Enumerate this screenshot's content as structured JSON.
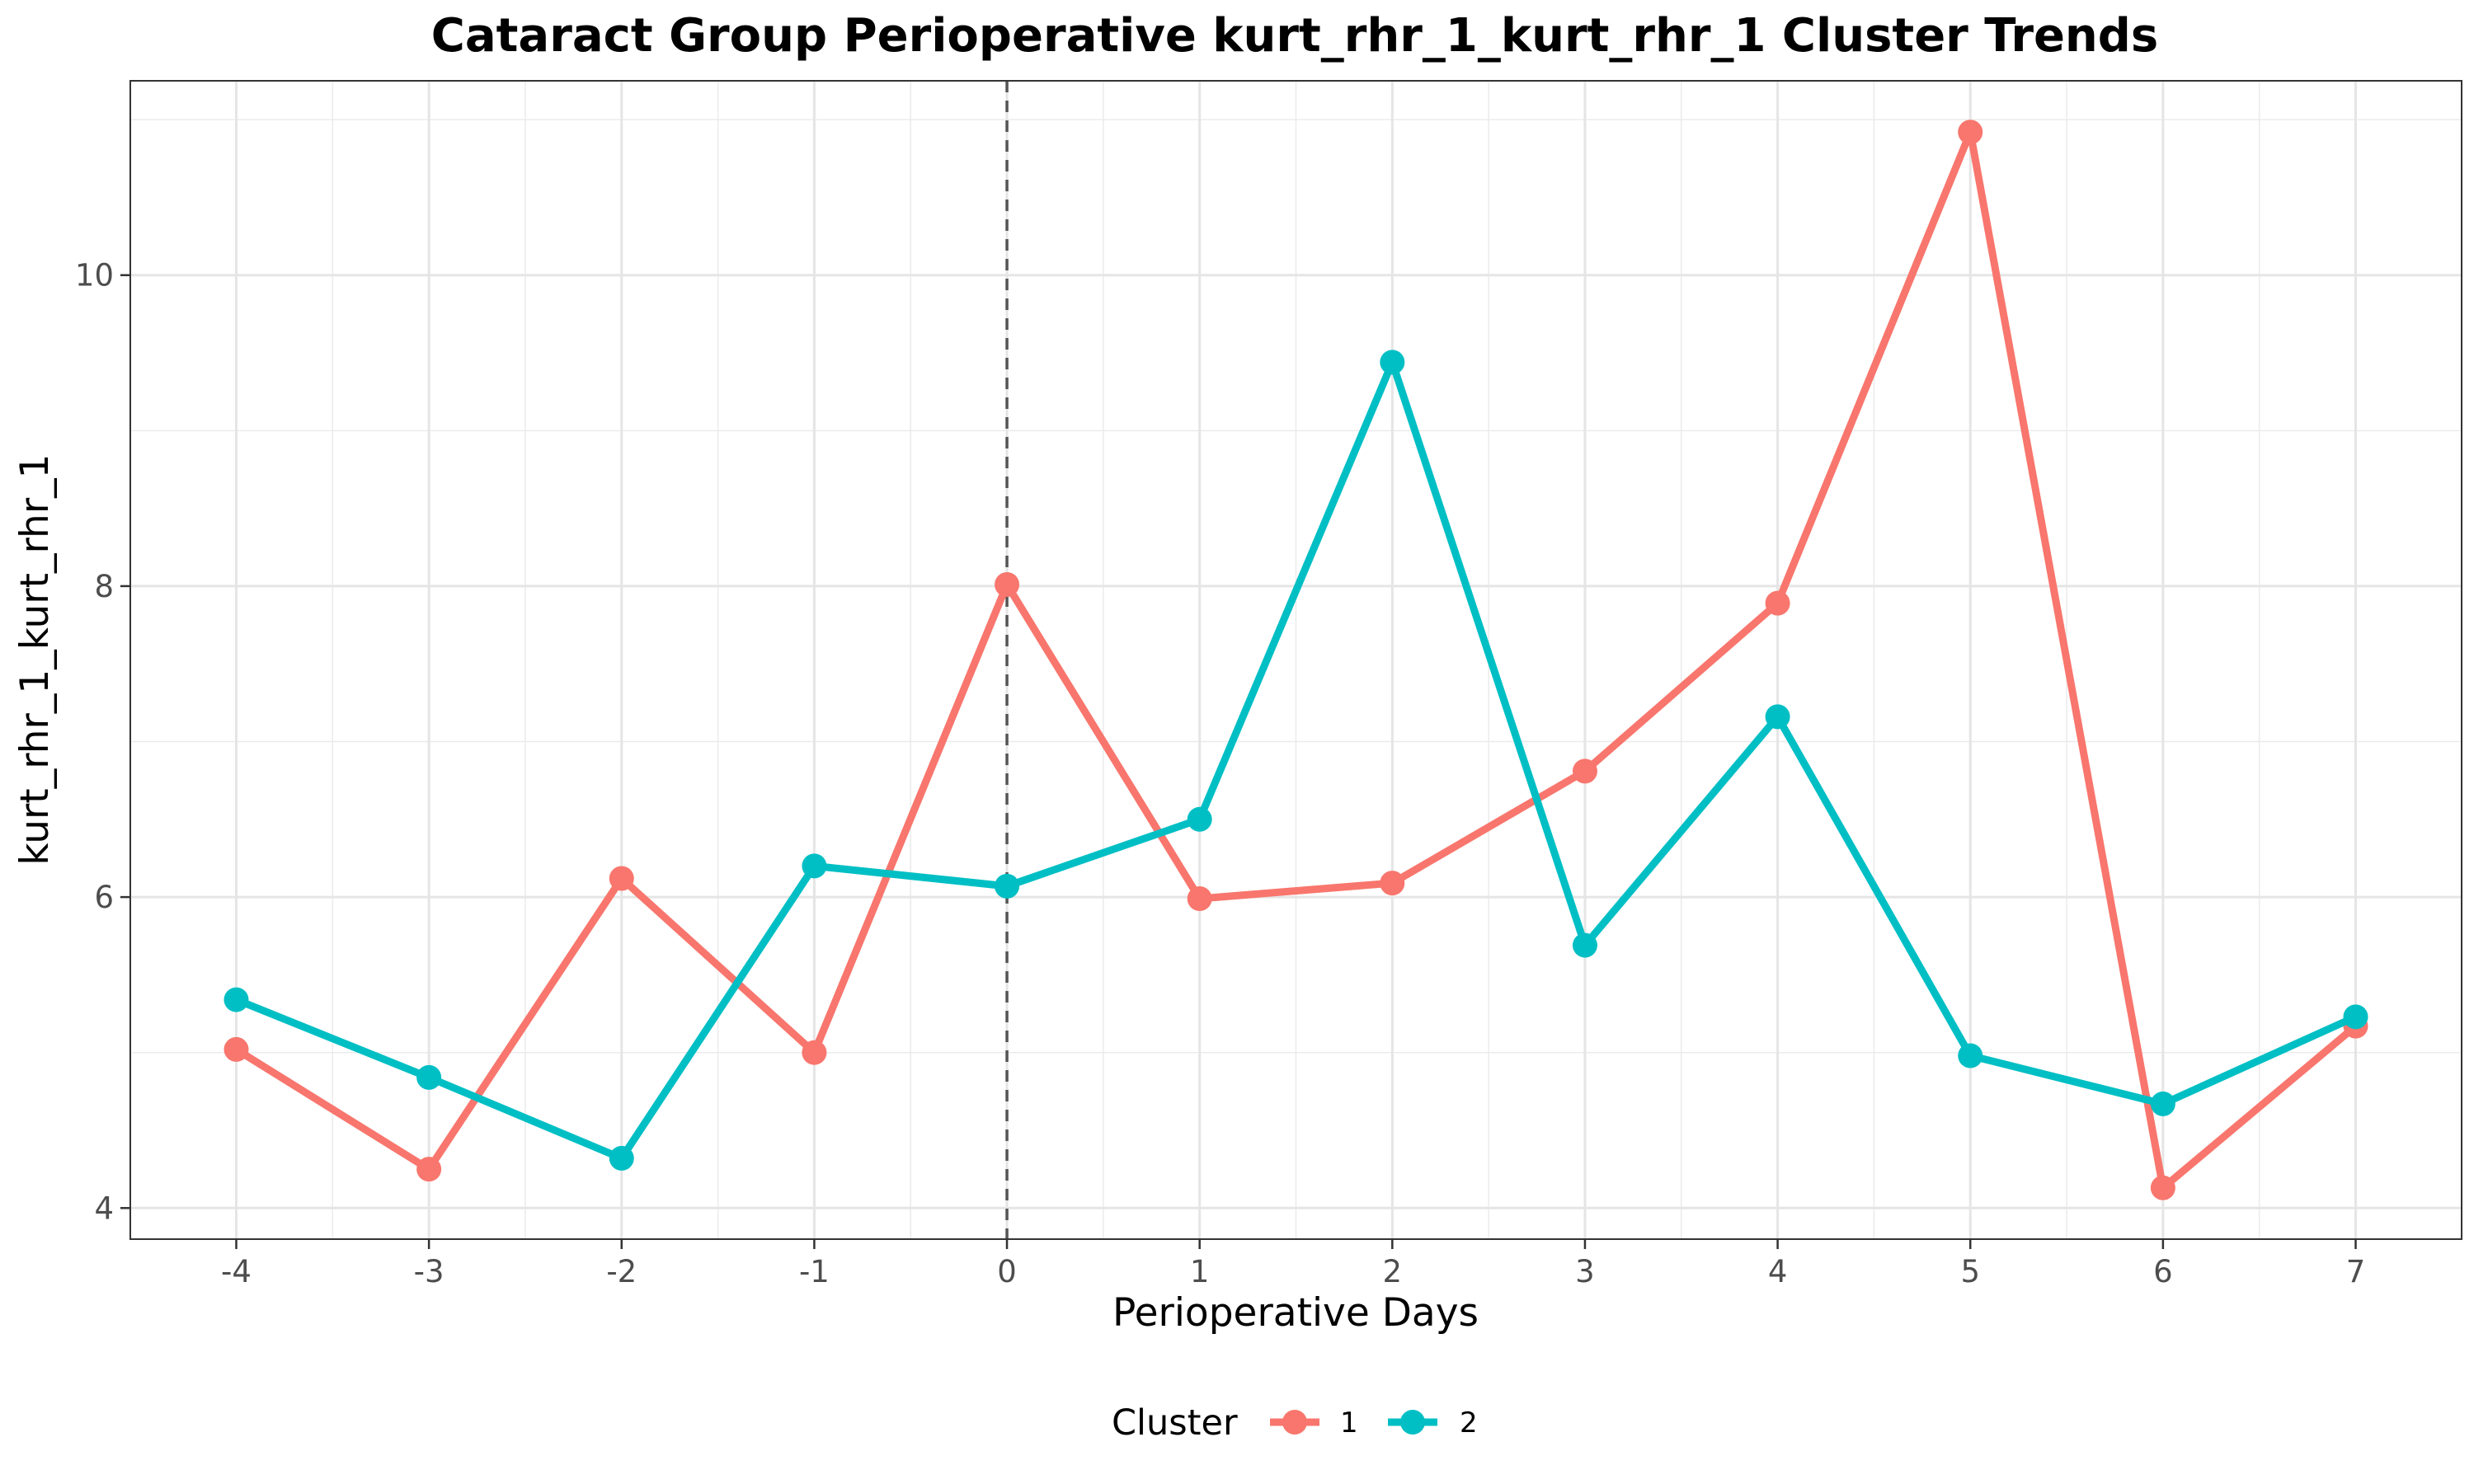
{
  "chart_data": {
    "type": "line",
    "title": "Cataract Group Perioperative kurt_rhr_1_kurt_rhr_1 Cluster Trends",
    "xlabel": "Perioperative Days",
    "ylabel": "kurt_rhr_1_kurt_rhr_1",
    "x": [
      -4,
      -3,
      -2,
      -1,
      0,
      1,
      2,
      3,
      4,
      5,
      6,
      7
    ],
    "x_tick_labels": [
      "-4",
      "-3",
      "-2",
      "-1",
      "0",
      "1",
      "2",
      "3",
      "4",
      "5",
      "6",
      "7"
    ],
    "y_ticks": [
      4,
      6,
      8,
      10
    ],
    "y_tick_labels": [
      "4",
      "6",
      "8",
      "10"
    ],
    "xlim": [
      -4.55,
      7.55
    ],
    "ylim": [
      3.8,
      11.25
    ],
    "reference_line": {
      "x": 0,
      "style": "dashed"
    },
    "grid": true,
    "legend": {
      "title": "Cluster",
      "position": "bottom"
    },
    "series": [
      {
        "name": "1",
        "color": "#F8766D",
        "values": [
          5.02,
          4.25,
          6.12,
          5.0,
          8.01,
          5.99,
          6.09,
          6.81,
          7.89,
          10.92,
          4.13,
          5.17
        ]
      },
      {
        "name": "2",
        "color": "#00BFC4",
        "values": [
          5.34,
          4.84,
          4.32,
          6.2,
          6.07,
          6.5,
          9.44,
          5.69,
          7.16,
          4.98,
          4.67,
          5.23
        ]
      }
    ]
  }
}
